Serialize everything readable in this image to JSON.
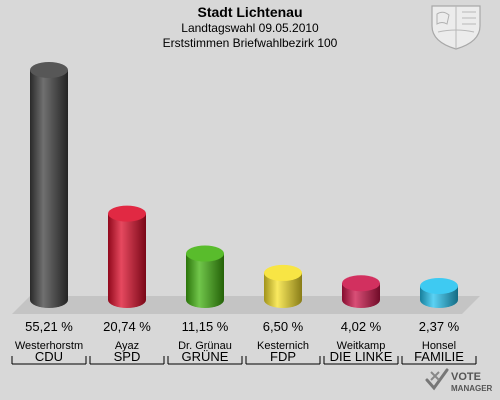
{
  "header": {
    "title": "Stadt Lichtenau",
    "subtitle": "Landtagswahl 09.05.2010",
    "subtitle2": "Erststimmen Briefwahlbezirk 100"
  },
  "logo": {
    "line1": "VOTE",
    "line2": "MANAGER",
    "icon": "vote-check-icon"
  },
  "crest": {
    "icon": "coat-of-arms-icon"
  },
  "chart_data": {
    "type": "bar",
    "style": "3d-cylinder",
    "ylim": [
      0,
      60
    ],
    "categories": [
      "CDU",
      "SPD",
      "GRÜNE",
      "FDP",
      "DIE LINKE",
      "FAMILIE"
    ],
    "candidates": [
      "Westerhorstm",
      "Ayaz",
      "Dr. Grünau",
      "Kesternich",
      "Weitkamp",
      "Honsel"
    ],
    "values": [
      55.21,
      20.74,
      11.15,
      6.5,
      4.02,
      2.37
    ],
    "value_labels": [
      "55,21 %",
      "20,74 %",
      "11,15 %",
      "6,50 %",
      "4,02 %",
      "2,37 %"
    ],
    "colors": [
      "#404040",
      "#dd0c29",
      "#42b30f",
      "#f7e22a",
      "#cc1449",
      "#24c3f0"
    ]
  }
}
